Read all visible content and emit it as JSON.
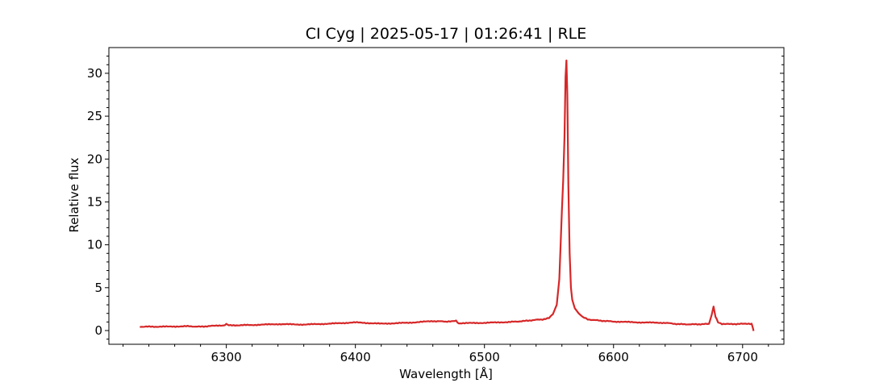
{
  "chart_data": {
    "type": "line",
    "title": "CI Cyg | 2025-05-17 | 01:26:41 | RLE",
    "xlabel": "Wavelength [Å]",
    "ylabel": "Relative flux",
    "xlim": [
      6209,
      6732
    ],
    "ylim": [
      -1.6,
      33.0
    ],
    "xticks": [
      6300,
      6400,
      6500,
      6600,
      6700
    ],
    "yticks": [
      0,
      5,
      10,
      15,
      20,
      25,
      30
    ],
    "legend": "none",
    "grid": false,
    "series_color": "#d62728",
    "series": [
      {
        "x": [
          6233,
          6250,
          6270,
          6280,
          6290,
          6298,
          6300,
          6302,
          6320,
          6340,
          6360,
          6380,
          6400,
          6420,
          6440,
          6460,
          6470,
          6478,
          6480,
          6500,
          6520,
          6530,
          6540,
          6545,
          6550,
          6553,
          6556,
          6558,
          6560,
          6561,
          6562,
          6562.8,
          6563.5,
          6564.2,
          6565,
          6566,
          6567,
          6568,
          6570,
          6573,
          6576,
          6580,
          6590,
          6600,
          6620,
          6640,
          6650,
          6660,
          6670,
          6674,
          6676,
          6677.5,
          6679,
          6681,
          6684,
          6690,
          6700,
          6707,
          6708,
          6708.5
        ],
        "y": [
          0.45,
          0.45,
          0.5,
          0.45,
          0.55,
          0.6,
          0.75,
          0.6,
          0.65,
          0.75,
          0.7,
          0.8,
          0.95,
          0.8,
          0.9,
          1.1,
          1.05,
          1.15,
          0.85,
          0.9,
          1.0,
          1.1,
          1.25,
          1.3,
          1.45,
          1.9,
          3.0,
          6.0,
          14.0,
          17.5,
          22.5,
          29.5,
          31.5,
          27.5,
          17.0,
          9.0,
          5.0,
          3.6,
          2.6,
          2.0,
          1.6,
          1.3,
          1.15,
          1.05,
          0.95,
          0.9,
          0.75,
          0.72,
          0.75,
          0.8,
          1.8,
          2.8,
          1.6,
          0.95,
          0.78,
          0.75,
          0.78,
          0.8,
          0.3,
          -0.05
        ]
      }
    ]
  }
}
